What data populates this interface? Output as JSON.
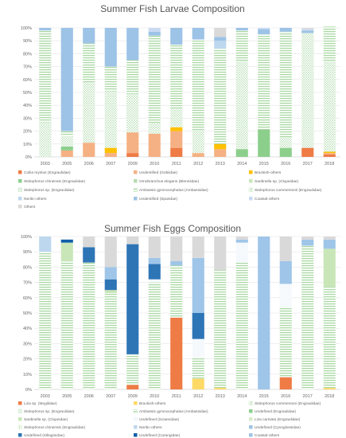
{
  "chart_data": [
    {
      "type": "bar",
      "stacked": true,
      "title": "Summer Fish Larvae Composition",
      "xlabel": "",
      "ylabel": "",
      "ylim": [
        0,
        100
      ],
      "y_ticks": [
        "0%",
        "10%",
        "20%",
        "30%",
        "40%",
        "50%",
        "60%",
        "70%",
        "80%",
        "90%",
        "100%"
      ],
      "grid": true,
      "legend_position": "bottom",
      "categories": [
        "2003",
        "2005",
        "2006",
        "2007",
        "2009",
        "2010",
        "2011",
        "2012",
        "2013",
        "2014",
        "2015",
        "2016",
        "2017",
        "2018"
      ],
      "series": [
        {
          "name": "Coilia mystus (Engraulidae)",
          "color": "#ef7b45",
          "pattern": "solid",
          "values": [
            0,
            0,
            0,
            0,
            3,
            0,
            7,
            0,
            0,
            0,
            0,
            0,
            7,
            2
          ]
        },
        {
          "name": "Undentified (Gobiidae)",
          "color": "#f5b183",
          "pattern": "solid",
          "values": [
            0,
            5,
            11,
            3,
            16,
            18,
            13,
            3,
            6,
            0,
            0,
            0,
            0,
            1
          ]
        },
        {
          "name": "Brackish-others",
          "color": "#ffc000",
          "pattern": "solid",
          "values": [
            0,
            0,
            0,
            4,
            0,
            0,
            3,
            0,
            4,
            0,
            0,
            0,
            0,
            1
          ]
        },
        {
          "name": "Stolephorus chinensis (Engraulidae)",
          "color": "#8ccf8c",
          "pattern": "solid",
          "values": [
            0,
            3,
            0,
            0,
            0,
            0,
            0,
            0,
            0,
            6,
            21,
            7,
            0,
            0
          ]
        },
        {
          "name": "Omobranchus elegans (Blenniidae)",
          "color": "#b6dcb0",
          "pattern": "solid",
          "values": [
            0,
            0,
            0,
            0,
            0,
            0,
            0,
            0,
            0,
            0,
            0,
            0,
            0,
            0
          ]
        },
        {
          "name": "Sardinella sp. (Clupeidae)",
          "color": "#c9e6b8",
          "pattern": "solid",
          "values": [
            0,
            0,
            0,
            0,
            0,
            0,
            0,
            0,
            0,
            0,
            0,
            0,
            0,
            0
          ]
        },
        {
          "name": "Stolephorus sp. (Engraulidae)",
          "color": "#9fd39c",
          "pattern": "dots",
          "values": [
            27,
            8,
            47,
            44,
            30,
            8,
            14,
            18,
            0,
            68,
            0,
            8,
            89,
            70
          ]
        },
        {
          "name": "Ambassis gymnocephalus (Ambassidae)",
          "color": "#a9d8a3",
          "pattern": "hstripe",
          "values": [
            71,
            4,
            30,
            19,
            26,
            68,
            50,
            70,
            74,
            24,
            74,
            82,
            0,
            27
          ]
        },
        {
          "name": "Stolephorus commersonii (Engraulidae)",
          "color": "#b8e0b0",
          "pattern": "vstripe",
          "values": [
            0,
            0,
            0,
            0,
            0,
            0,
            0,
            0,
            0,
            0,
            0,
            0,
            0,
            0
          ]
        },
        {
          "name": "Neritic-others",
          "color": "#bdd7ee",
          "pattern": "solid",
          "values": [
            0,
            0,
            0,
            0,
            0,
            0,
            0,
            0,
            6,
            0,
            0,
            0,
            0,
            0
          ]
        },
        {
          "name": "Undentified (Sparidae)",
          "color": "#9dc3e6",
          "pattern": "solid",
          "values": [
            2,
            80,
            12,
            30,
            25,
            3,
            13,
            9,
            3,
            2,
            4,
            3,
            2,
            0
          ]
        },
        {
          "name": "Coastal-others",
          "color": "#c9daf2",
          "pattern": "solid",
          "values": [
            0,
            0,
            0,
            0,
            0,
            3,
            0,
            0,
            0,
            0,
            1,
            0,
            1,
            0
          ]
        },
        {
          "name": "Others",
          "color": "#d9d9d9",
          "pattern": "solid",
          "values": [
            0,
            0,
            0,
            0,
            0,
            0,
            0,
            0,
            7,
            0,
            0,
            0,
            1,
            0
          ]
        }
      ]
    },
    {
      "type": "bar",
      "stacked": true,
      "title": "Summer Fish Eggs Composition",
      "xlabel": "",
      "ylabel": "",
      "ylim": [
        0,
        100
      ],
      "y_ticks": [
        "0%",
        "10%",
        "20%",
        "30%",
        "40%",
        "50%",
        "60%",
        "70%",
        "80%",
        "90%",
        "100%"
      ],
      "grid": true,
      "legend_position": "bottom",
      "categories": [
        "2003",
        "2005",
        "2006",
        "2007",
        "2009",
        "2010",
        "2011",
        "2012",
        "2013",
        "2014",
        "2015",
        "2016",
        "2017",
        "2018"
      ],
      "series": [
        {
          "name": "Liza sp. (Mugilidae)",
          "color": "#ef7b45",
          "pattern": "solid",
          "values": [
            0,
            0,
            0,
            0,
            3,
            0,
            47,
            0,
            0,
            0,
            0,
            8,
            0,
            0
          ]
        },
        {
          "name": "Brackish-others",
          "color": "#ffd966",
          "pattern": "solid",
          "values": [
            0,
            0,
            0,
            0,
            0,
            0,
            0,
            7,
            1,
            0,
            0,
            0,
            0,
            1
          ]
        },
        {
          "name": "Stolephorus commersoni (Engraulidae)",
          "color": "#b8e0b0",
          "pattern": "vstripe",
          "values": [
            0,
            0,
            0,
            0,
            0,
            0,
            0,
            0,
            0,
            0,
            0,
            0,
            0,
            0
          ]
        },
        {
          "name": "Stolephorus sp. (Engraulidae)",
          "color": "#a9d8a3",
          "pattern": "dots",
          "values": [
            0,
            0,
            0,
            0,
            0,
            0,
            0,
            0,
            0,
            0,
            0,
            0,
            0,
            0
          ]
        },
        {
          "name": "Ambassis gymnocephalus (Ambassidae)",
          "color": "#a9d8a3",
          "pattern": "hstripe",
          "values": [
            90,
            84,
            83,
            63,
            20,
            70,
            34,
            14,
            77,
            83,
            0,
            46,
            94,
            66
          ]
        },
        {
          "name": "Undefined (Engraulidae)",
          "color": "#8ccf8c",
          "pattern": "solid",
          "values": [
            0,
            0,
            0,
            0,
            0,
            0,
            0,
            0,
            0,
            0,
            0,
            0,
            0,
            0
          ]
        },
        {
          "name": "Sardinella sp. (Clupeidae)",
          "color": "#c9e6b8",
          "pattern": "solid",
          "values": [
            0,
            12,
            0,
            2,
            0,
            0,
            0,
            0,
            0,
            0,
            0,
            0,
            0,
            25
          ]
        },
        {
          "name": "Undefined (Sciaenidae)",
          "color": "#deebf7",
          "pattern": "dots",
          "values": [
            0,
            0,
            0,
            0,
            0,
            2,
            0,
            12,
            0,
            13,
            0,
            15,
            0,
            0
          ]
        },
        {
          "name": "Liza carinata (Engraulidae)",
          "color": "#d5ecc8",
          "pattern": "solid",
          "values": [
            0,
            0,
            0,
            0,
            0,
            0,
            0,
            0,
            0,
            0,
            0,
            0,
            0,
            0
          ]
        },
        {
          "name": "Stolephorus chinensis (Engraulidae)",
          "color": "#c9e6b8",
          "pattern": "vstripe",
          "values": [
            0,
            0,
            0,
            0,
            0,
            0,
            0,
            0,
            0,
            0,
            0,
            0,
            0,
            0
          ]
        },
        {
          "name": "Neritic-others",
          "color": "#bdd7ee",
          "pattern": "solid",
          "values": [
            10,
            0,
            0,
            0,
            0,
            0,
            0,
            0,
            0,
            0,
            0,
            0,
            0,
            0
          ]
        },
        {
          "name": "Undefined (Cynoglossidae)",
          "color": "#9dc3e6",
          "pattern": "solid",
          "values": [
            0,
            0,
            0,
            0,
            0,
            0,
            0,
            0,
            0,
            0,
            0,
            0,
            0,
            0
          ]
        },
        {
          "name": "Undefined (Sillaginidae)",
          "color": "#2e75b6",
          "pattern": "solid",
          "values": [
            0,
            0,
            10,
            7,
            72,
            10,
            0,
            17,
            0,
            0,
            0,
            0,
            0,
            0
          ]
        },
        {
          "name": "Undefined (Carangidae)",
          "color": "#0f5fa8",
          "pattern": "solid",
          "values": [
            0,
            2,
            0,
            0,
            0,
            0,
            0,
            0,
            0,
            0,
            0,
            0,
            0,
            0
          ]
        },
        {
          "name": "Coastal-others",
          "color": "#9fc5e8",
          "pattern": "solid",
          "values": [
            0,
            0,
            0,
            8,
            0,
            4,
            3,
            36,
            0,
            2,
            100,
            15,
            4,
            6
          ]
        },
        {
          "name": "Others",
          "color": "#d9d9d9",
          "pattern": "solid",
          "values": [
            0,
            0,
            7,
            20,
            5,
            14,
            16,
            14,
            22,
            2,
            0,
            16,
            2,
            2
          ]
        }
      ]
    }
  ]
}
